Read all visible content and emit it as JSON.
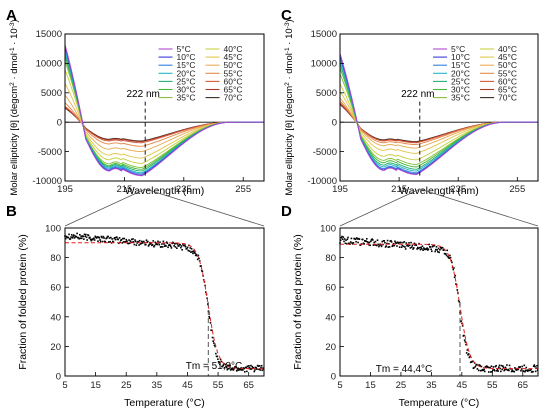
{
  "legend_colors": [
    "#b04ad0",
    "#3a3ad8",
    "#2f7fe0",
    "#22b8c4",
    "#24b070",
    "#46b83a",
    "#86c03a",
    "#c8d040",
    "#e2c84e",
    "#e8ac58",
    "#e48a4a",
    "#d45a3a",
    "#a83a2a",
    "#3a2a1e"
  ],
  "chart_data": [
    {
      "panel": "A",
      "type": "line",
      "xlabel": "Wavelength (nm)",
      "ylabel_main": "Molar ellipticity [θ] (degcm",
      "ylabel_mid": " · dmol",
      "ylabel_end": " · 10",
      "ylabel_sup1": "2",
      "ylabel_sup2": "-1",
      "ylabel_sup3": "-3",
      "ylabel_close": ")",
      "xlim": [
        195,
        262
      ],
      "ylim": [
        -10000,
        15000
      ],
      "xticks": [
        195,
        215,
        235,
        255
      ],
      "yticks": [
        -10000,
        -5000,
        0,
        5000,
        10000,
        15000
      ],
      "ytick_labels": [
        "-10000",
        "-5000",
        "0",
        "5000",
        "10000",
        "15000"
      ],
      "annotation": "222 nm",
      "annotation_x": 222,
      "legend": [
        "5°C",
        "10°C",
        "15°C",
        "20°C",
        "25°C",
        "30°C",
        "35°C",
        "40°C",
        "45°C",
        "50°C",
        "55°C",
        "60°C",
        "65°C",
        "70°C"
      ],
      "series_params": {
        "y195": [
          13200,
          12900,
          12600,
          12000,
          11600,
          11100,
          10400,
          8900,
          6600,
          4600,
          3300,
          2700,
          2500,
          2400
        ],
        "min220": [
          -9100,
          -9000,
          -8800,
          -8600,
          -8300,
          -8000,
          -7700,
          -7000,
          -6100,
          -5000,
          -4100,
          -3500,
          -3300,
          -3200
        ],
        "min210": [
          -8300,
          -8200,
          -8000,
          -7800,
          -7600,
          -7400,
          -7100,
          -6400,
          -5600,
          -4600,
          -3700,
          -3200,
          -3000,
          -2900
        ]
      }
    },
    {
      "panel": "C",
      "type": "line",
      "xlabel": "Wavelength (nm)",
      "ylabel_main": "Molar ellipticity [θ] (degcm",
      "ylabel_mid": " · dmol",
      "ylabel_end": " · 10",
      "ylabel_sup1": "2",
      "ylabel_sup2": "-1",
      "ylabel_sup3": "-3",
      "ylabel_close": ")",
      "xlim": [
        195,
        262
      ],
      "ylim": [
        -10000,
        15000
      ],
      "xticks": [
        195,
        215,
        235,
        255
      ],
      "yticks": [
        -10000,
        -5000,
        0,
        5000,
        10000,
        15000
      ],
      "ytick_labels": [
        "-10000",
        "-5000",
        "0",
        "5000",
        "10000",
        "15000"
      ],
      "annotation": "222 nm",
      "annotation_x": 222,
      "legend": [
        "5°C",
        "10°C",
        "15°C",
        "20°C",
        "25°C",
        "30°C",
        "35°C",
        "40°C",
        "45°C",
        "50°C",
        "55°C",
        "60°C",
        "65°C",
        "70°C"
      ],
      "series_params": {
        "y195": [
          11700,
          11400,
          11000,
          10400,
          9900,
          9200,
          8200,
          6500,
          5200,
          4100,
          3600,
          3300,
          3100,
          3000
        ],
        "min220": [
          -8900,
          -8800,
          -8600,
          -8300,
          -8000,
          -7600,
          -7200,
          -6400,
          -5300,
          -4400,
          -3800,
          -3500,
          -3400,
          -3300
        ],
        "min210": [
          -8200,
          -8100,
          -7900,
          -7600,
          -7300,
          -6900,
          -6500,
          -5800,
          -4800,
          -4000,
          -3500,
          -3200,
          -3100,
          -3000
        ]
      }
    },
    {
      "panel": "B",
      "type": "scatter",
      "xlabel": "Temperature (°C)",
      "ylabel": "Fraction of folded protein (%)",
      "xlim": [
        5,
        70
      ],
      "ylim": [
        0,
        100
      ],
      "xticks": [
        5,
        15,
        25,
        35,
        45,
        55,
        65
      ],
      "yticks": [
        0,
        20,
        40,
        60,
        80,
        100
      ],
      "tm_label": "Tm = 51,8°C",
      "tm": 51.8,
      "fit": {
        "top": 90,
        "bottom": 5,
        "slope": 1.6
      },
      "data_model": {
        "top_start": 95,
        "top_end": 86,
        "bottom": 5,
        "slope": 1.4,
        "noise": 2.2
      }
    },
    {
      "panel": "D",
      "type": "scatter",
      "xlabel": "Temperature (°C)",
      "ylabel": "Fraction of folded protein (%)",
      "xlim": [
        5,
        70
      ],
      "ylim": [
        0,
        100
      ],
      "xticks": [
        5,
        15,
        25,
        35,
        45,
        55,
        65
      ],
      "yticks": [
        0,
        20,
        40,
        60,
        80,
        100
      ],
      "tm_label": "Tm = 44,4°C",
      "tm": 44.4,
      "fit": {
        "top": 89,
        "bottom": 5,
        "slope": 1.6
      },
      "data_model": {
        "top_start": 92,
        "top_end": 85,
        "bottom": 5,
        "slope": 1.3,
        "noise": 2.4
      }
    }
  ]
}
